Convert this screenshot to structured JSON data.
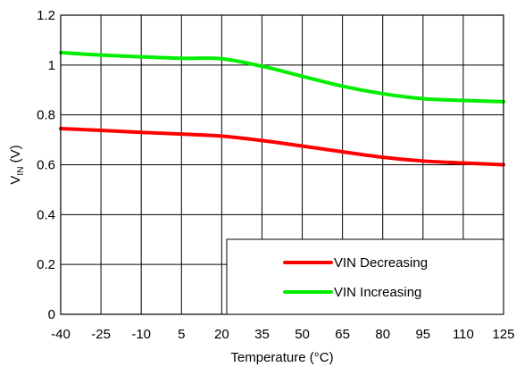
{
  "chart_data": {
    "type": "line",
    "title": "",
    "xlabel": "Temperature (°C)",
    "ylabel": {
      "main": "V",
      "sub": "IN",
      "unit": " (V)"
    },
    "x_categories": [
      "-40",
      "-25",
      "-10",
      "5",
      "20",
      "35",
      "50",
      "65",
      "80",
      "95",
      "110",
      "125"
    ],
    "xlim": [
      -40,
      125
    ],
    "ylim": [
      0,
      1.2
    ],
    "yticks": [
      "0",
      "0.2",
      "0.4",
      "0.6",
      "0.8",
      "1",
      "1.2"
    ],
    "ytick_values": [
      0,
      0.2,
      0.4,
      0.6,
      0.8,
      1.0,
      1.2
    ],
    "grid": true,
    "legend_position": "bottom-right",
    "series": [
      {
        "name": "VIN Decreasing",
        "color": "#ff0000",
        "x": [
          -40,
          -25,
          -10,
          5,
          20,
          35,
          50,
          65,
          80,
          95,
          110,
          125
        ],
        "y": [
          0.745,
          0.738,
          0.73,
          0.723,
          0.715,
          0.697,
          0.675,
          0.652,
          0.63,
          0.615,
          0.607,
          0.6
        ]
      },
      {
        "name": "VIN Increasing",
        "color": "#00ee00",
        "x": [
          -40,
          -25,
          -10,
          5,
          20,
          35,
          50,
          65,
          80,
          95,
          110,
          125
        ],
        "y": [
          1.05,
          1.04,
          1.033,
          1.027,
          1.025,
          0.995,
          0.955,
          0.915,
          0.885,
          0.865,
          0.858,
          0.853
        ]
      }
    ]
  }
}
